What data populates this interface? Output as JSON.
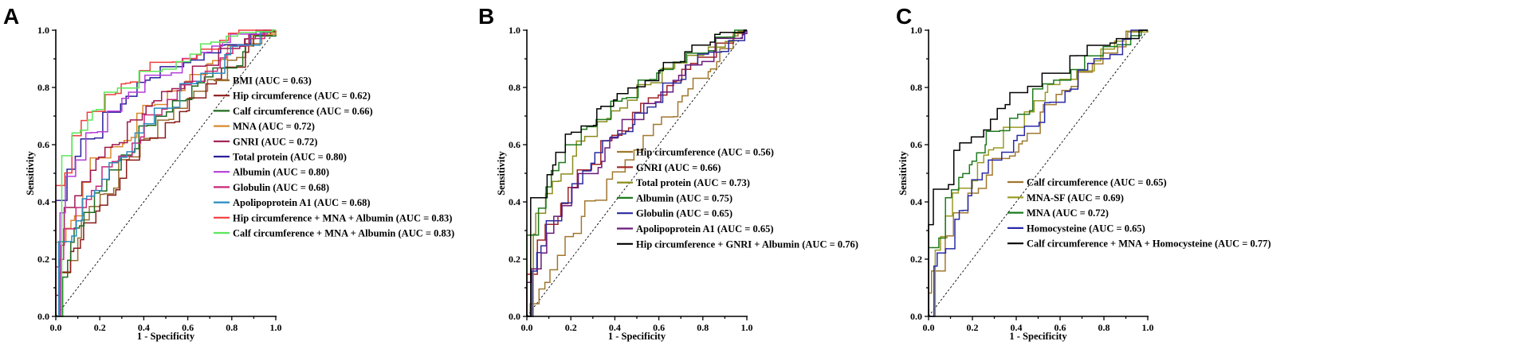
{
  "chart_data": [
    {
      "type": "line",
      "panel_label": "A",
      "xlabel": "1 - Specificity",
      "ylabel": "Sensitivity",
      "xlim": [
        0,
        1
      ],
      "ylim": [
        0,
        1
      ],
      "ticks": [
        "0.0",
        "0.2",
        "0.4",
        "0.6",
        "0.8",
        "1.0"
      ],
      "legend_position": "bottom-right",
      "reference_line": "diagonal",
      "series": [
        {
          "name": "BMI (AUC = 0.63)",
          "auc": 0.63,
          "color": "#9a6b2e"
        },
        {
          "name": "Hip circumference (AUC = 0.62)",
          "auc": 0.62,
          "color": "#8b1a1a"
        },
        {
          "name": "Calf circumference (AUC = 0.66)",
          "auc": 0.66,
          "color": "#1e6b1e"
        },
        {
          "name": "MNA (AUC = 0.72)",
          "auc": 0.72,
          "color": "#d98a2b"
        },
        {
          "name": "GNRI (AUC = 0.72)",
          "auc": 0.72,
          "color": "#a01850"
        },
        {
          "name": "Total protein (AUC = 0.80)",
          "auc": 0.8,
          "color": "#2a1f9a"
        },
        {
          "name": "Albumin (AUC = 0.80)",
          "auc": 0.8,
          "color": "#b43cd8"
        },
        {
          "name": "Globulin (AUC = 0.68)",
          "auc": 0.68,
          "color": "#c8287a"
        },
        {
          "name": "Apolipoprotein A1 (AUC = 0.68)",
          "auc": 0.68,
          "color": "#2a8cc0"
        },
        {
          "name": "Hip circumference + MNA + Albumin (AUC = 0.83)",
          "auc": 0.83,
          "color": "#f03c3c"
        },
        {
          "name": "Calf circumference + MNA + Albumin (AUC = 0.83)",
          "auc": 0.83,
          "color": "#5ce65c"
        }
      ]
    },
    {
      "type": "line",
      "panel_label": "B",
      "xlabel": "1 - Specificity",
      "ylabel": "Sensitivity",
      "xlim": [
        0,
        1
      ],
      "ylim": [
        0,
        1
      ],
      "ticks": [
        "0.0",
        "0.2",
        "0.4",
        "0.6",
        "0.8",
        "1.0"
      ],
      "legend_position": "bottom-right",
      "reference_line": "diagonal",
      "series": [
        {
          "name": "Hip circumference (AUC = 0.56)",
          "auc": 0.56,
          "color": "#a0782e"
        },
        {
          "name": "GNRI (AUC = 0.66)",
          "auc": 0.66,
          "color": "#a02424"
        },
        {
          "name": "Total protein (AUC = 0.73)",
          "auc": 0.73,
          "color": "#8c8c1e"
        },
        {
          "name": "Albumin (AUC = 0.75)",
          "auc": 0.75,
          "color": "#1e7a1e"
        },
        {
          "name": "Globulin (AUC = 0.65)",
          "auc": 0.65,
          "color": "#2a2aa0"
        },
        {
          "name": "Apolipoprotein A1 (AUC = 0.65)",
          "auc": 0.65,
          "color": "#6a1a7a"
        },
        {
          "name": "Hip circumference + GNRI + Albumin (AUC = 0.76)",
          "auc": 0.76,
          "color": "#000000"
        }
      ]
    },
    {
      "type": "line",
      "panel_label": "C",
      "xlabel": "1 - Specificity",
      "ylabel": "Sensitivity",
      "xlim": [
        0,
        1
      ],
      "ylim": [
        0,
        1
      ],
      "ticks": [
        "0.0",
        "0.2",
        "0.4",
        "0.6",
        "0.8",
        "1.0"
      ],
      "legend_position": "bottom-right",
      "reference_line": "diagonal",
      "series": [
        {
          "name": "Calf circumference (AUC = 0.65)",
          "auc": 0.65,
          "color": "#a0782e"
        },
        {
          "name": "MNA-SF (AUC = 0.69)",
          "auc": 0.69,
          "color": "#9a9a24"
        },
        {
          "name": "MNA (AUC = 0.72)",
          "auc": 0.72,
          "color": "#1e7a1e"
        },
        {
          "name": "Homocysteine (AUC = 0.65)",
          "auc": 0.65,
          "color": "#2a2aa8"
        },
        {
          "name": "Calf circumference + MNA + Homocysteine (AUC = 0.77)",
          "auc": 0.77,
          "color": "#000000"
        }
      ]
    }
  ]
}
